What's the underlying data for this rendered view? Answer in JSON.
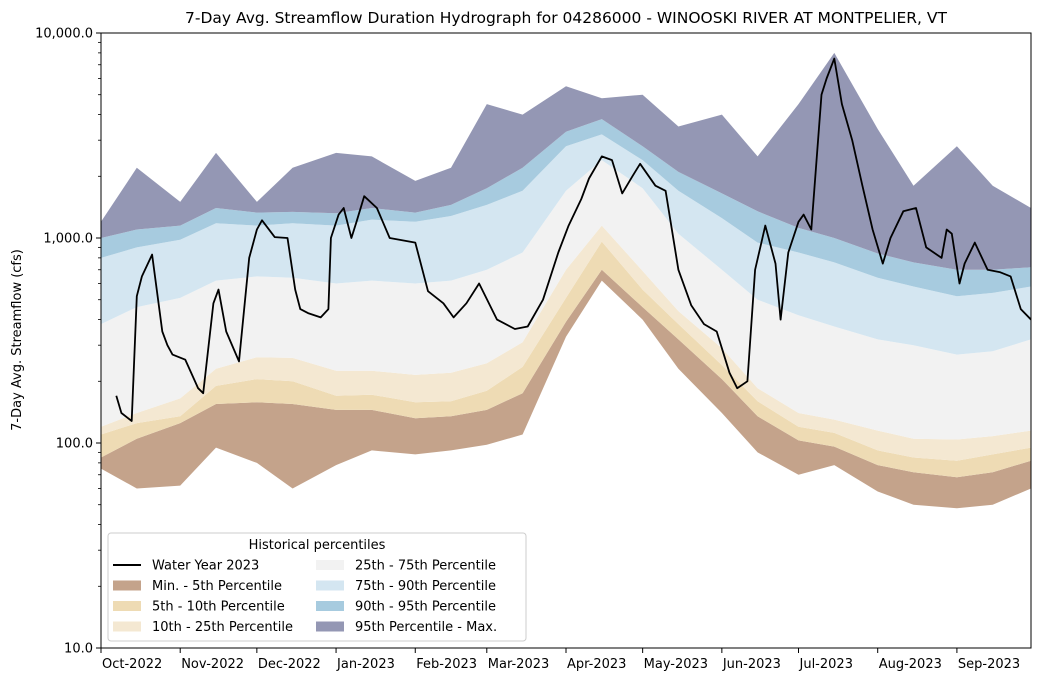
{
  "chart_data": {
    "type": "area",
    "title": "7-Day Avg. Streamflow Duration Hydrograph for 04286000 - WINOOSKI RIVER AT MONTPELIER, VT",
    "xlabel": "",
    "ylabel": "7-Day Avg. Streamflow (cfs)",
    "yscale": "log",
    "ylim": [
      10,
      10000
    ],
    "y_ticks": [
      10,
      100,
      1000,
      10000
    ],
    "y_tick_labels": [
      "10.0",
      "100.0",
      "1,000.0",
      "10,000.0"
    ],
    "xlim": [
      "2022-10-01",
      "2023-09-30"
    ],
    "x_ticks": [
      "2022-10-01",
      "2022-11-01",
      "2022-12-01",
      "2023-01-01",
      "2023-02-01",
      "2023-03-01",
      "2023-04-01",
      "2023-05-01",
      "2023-06-01",
      "2023-07-01",
      "2023-08-01",
      "2023-09-01"
    ],
    "x_tick_labels": [
      "Oct-2022",
      "Nov-2022",
      "Dec-2022",
      "Jan-2023",
      "Feb-2023",
      "Mar-2023",
      "Apr-2023",
      "May-2023",
      "Jun-2023",
      "Jul-2023",
      "Aug-2023",
      "Sep-2023"
    ],
    "legend_title": "Historical percentiles",
    "legend_position": "lower-left",
    "colors": {
      "min_p5": "#c4a38b",
      "p5_p10": "#eedbb4",
      "p10_p25": "#f4e8d2",
      "p25_p75": "#f2f2f2",
      "p75_p90": "#d4e6f1",
      "p90_p95": "#a7cbdf",
      "p95_max": "#9497b4",
      "current": "#000000"
    },
    "band_dates": [
      "2022-10-01",
      "2022-10-15",
      "2022-11-01",
      "2022-11-15",
      "2022-12-01",
      "2022-12-15",
      "2023-01-01",
      "2023-01-15",
      "2023-02-01",
      "2023-02-15",
      "2023-03-01",
      "2023-03-15",
      "2023-04-01",
      "2023-04-15",
      "2023-05-01",
      "2023-05-15",
      "2023-06-01",
      "2023-06-15",
      "2023-07-01",
      "2023-07-15",
      "2023-08-01",
      "2023-08-15",
      "2023-09-01",
      "2023-09-15",
      "2023-09-30"
    ],
    "percentiles": {
      "min": [
        75,
        60,
        62,
        95,
        80,
        60,
        78,
        92,
        88,
        92,
        98,
        110,
        330,
        620,
        400,
        230,
        140,
        90,
        70,
        78,
        58,
        50,
        48,
        50,
        60
      ],
      "p5": [
        85,
        105,
        125,
        155,
        158,
        155,
        145,
        145,
        132,
        135,
        145,
        175,
        390,
        700,
        460,
        320,
        205,
        135,
        103,
        96,
        78,
        72,
        68,
        72,
        82
      ],
      "p10": [
        110,
        125,
        135,
        190,
        205,
        200,
        170,
        172,
        158,
        160,
        180,
        235,
        510,
        960,
        560,
        380,
        240,
        160,
        120,
        112,
        92,
        85,
        82,
        88,
        95
      ],
      "p25": [
        120,
        140,
        165,
        230,
        262,
        260,
        225,
        225,
        215,
        220,
        245,
        310,
        700,
        1150,
        690,
        440,
        290,
        185,
        140,
        130,
        115,
        105,
        104,
        108,
        115
      ],
      "p75": [
        380,
        460,
        510,
        620,
        650,
        640,
        600,
        620,
        600,
        620,
        700,
        850,
        1700,
        2400,
        1750,
        1050,
        700,
        500,
        420,
        370,
        320,
        300,
        270,
        280,
        320
      ],
      "p90": [
        800,
        900,
        980,
        1180,
        1150,
        1180,
        1150,
        1230,
        1200,
        1280,
        1450,
        1700,
        2800,
        3200,
        2400,
        1700,
        1250,
        950,
        850,
        760,
        640,
        580,
        520,
        540,
        580
      ],
      "p95": [
        1000,
        1100,
        1150,
        1400,
        1330,
        1340,
        1320,
        1400,
        1330,
        1450,
        1750,
        2200,
        3300,
        3800,
        2800,
        2100,
        1650,
        1350,
        1120,
        1000,
        840,
        760,
        700,
        700,
        720
      ],
      "max": [
        1200,
        2200,
        1500,
        2600,
        1500,
        2200,
        2600,
        2500,
        1900,
        2200,
        4500,
        4000,
        5500,
        4800,
        5000,
        3500,
        4000,
        2500,
        4500,
        8000,
        3400,
        1800,
        2800,
        1800,
        1400
      ]
    },
    "current_dates": [
      "2022-10-07",
      "2022-10-09",
      "2022-10-13",
      "2022-10-15",
      "2022-10-17",
      "2022-10-21",
      "2022-10-25",
      "2022-10-27",
      "2022-10-29",
      "2022-11-03",
      "2022-11-08",
      "2022-11-10",
      "2022-11-14",
      "2022-11-16",
      "2022-11-19",
      "2022-11-24",
      "2022-11-28",
      "2022-12-01",
      "2022-12-03",
      "2022-12-08",
      "2022-12-13",
      "2022-12-16",
      "2022-12-18",
      "2022-12-21",
      "2022-12-26",
      "2022-12-29",
      "2022-12-30",
      "2023-01-02",
      "2023-01-04",
      "2023-01-07",
      "2023-01-09",
      "2023-01-12",
      "2023-01-17",
      "2023-01-22",
      "2023-02-01",
      "2023-02-06",
      "2023-02-12",
      "2023-02-16",
      "2023-02-21",
      "2023-02-26",
      "2023-03-05",
      "2023-03-12",
      "2023-03-17",
      "2023-03-23",
      "2023-03-29",
      "2023-04-02",
      "2023-04-07",
      "2023-04-10",
      "2023-04-15",
      "2023-04-19",
      "2023-04-23",
      "2023-04-27",
      "2023-04-30",
      "2023-05-06",
      "2023-05-10",
      "2023-05-15",
      "2023-05-20",
      "2023-05-25",
      "2023-05-30",
      "2023-06-04",
      "2023-06-07",
      "2023-06-11",
      "2023-06-14",
      "2023-06-18",
      "2023-06-22",
      "2023-06-24",
      "2023-06-27",
      "2023-07-01",
      "2023-07-03",
      "2023-07-06",
      "2023-07-10",
      "2023-07-12",
      "2023-07-15",
      "2023-07-18",
      "2023-07-22",
      "2023-07-26",
      "2023-07-30",
      "2023-08-03",
      "2023-08-06",
      "2023-08-11",
      "2023-08-16",
      "2023-08-20",
      "2023-08-26",
      "2023-08-28",
      "2023-08-30",
      "2023-09-02",
      "2023-09-04",
      "2023-09-08",
      "2023-09-13",
      "2023-09-18",
      "2023-09-22",
      "2023-09-26",
      "2023-09-30"
    ],
    "current_values": [
      170,
      140,
      128,
      520,
      650,
      830,
      350,
      300,
      270,
      255,
      185,
      175,
      480,
      560,
      350,
      250,
      800,
      1100,
      1220,
      1010,
      1000,
      560,
      450,
      430,
      410,
      450,
      1000,
      1300,
      1400,
      1000,
      1200,
      1600,
      1400,
      1000,
      950,
      550,
      480,
      410,
      480,
      600,
      400,
      360,
      370,
      500,
      850,
      1150,
      1550,
      1950,
      2500,
      2400,
      1650,
      2000,
      2300,
      1800,
      1700,
      700,
      470,
      380,
      350,
      220,
      185,
      200,
      700,
      1150,
      750,
      400,
      850,
      1200,
      1300,
      1100,
      5000,
      6000,
      7500,
      4500,
      3000,
      1800,
      1100,
      750,
      1000,
      1350,
      1400,
      900,
      800,
      1100,
      1050,
      600,
      750,
      950,
      700,
      680,
      650,
      450,
      400
    ],
    "series": [
      {
        "name": "Water Year 2023",
        "key": "current"
      },
      {
        "name": "Min. - 5th Percentile",
        "key": "min_p5"
      },
      {
        "name": "5th - 10th Percentile",
        "key": "p5_p10"
      },
      {
        "name": "10th - 25th Percentile",
        "key": "p10_p25"
      },
      {
        "name": "25th - 75th Percentile",
        "key": "p25_p75"
      },
      {
        "name": "75th - 90th Percentile",
        "key": "p75_p90"
      },
      {
        "name": "90th - 95th Percentile",
        "key": "p90_p95"
      },
      {
        "name": "95th Percentile - Max.",
        "key": "p95_max"
      }
    ]
  }
}
